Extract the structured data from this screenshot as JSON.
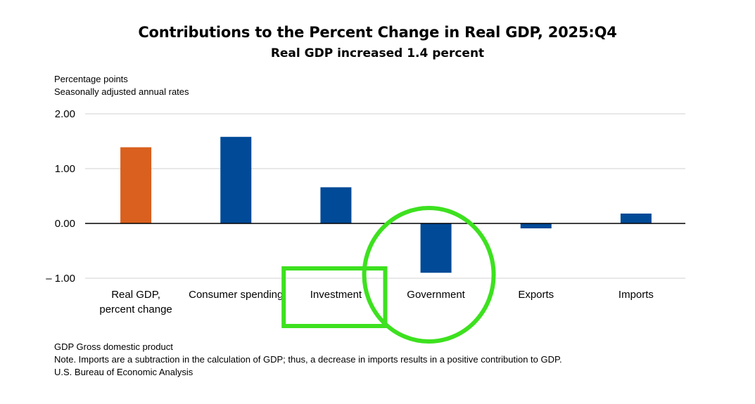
{
  "chart_data": {
    "type": "bar",
    "title": "Contributions to the Percent Change in Real GDP, 2025:Q4",
    "subtitle": "Real GDP increased 1.4 percent",
    "ylabel_lines": [
      "Percentage points",
      "Seasonally adjusted annual rates"
    ],
    "categories": [
      [
        "Real GDP,",
        "percent change"
      ],
      [
        "Consumer spending"
      ],
      [
        "Investment"
      ],
      [
        "Government"
      ],
      [
        "Exports"
      ],
      [
        "Imports"
      ]
    ],
    "values": [
      1.39,
      1.58,
      0.66,
      -0.9,
      -0.09,
      0.18
    ],
    "bar_colors": [
      "#d9601e",
      "#004a97",
      "#004a97",
      "#004a97",
      "#004a97",
      "#004a97"
    ],
    "ylim": [
      -1.0,
      2.0
    ],
    "yticks": [
      2.0,
      1.0,
      0.0,
      -1.0
    ],
    "ytick_labels": [
      "2.00",
      "1.00",
      "0.00",
      "– 1.00"
    ],
    "grid": true,
    "gridline_color": "#d9d9d9",
    "zero_line_color": "#000000",
    "annotations": [
      {
        "shape": "rectangle",
        "target": [
          "Consumer spending",
          "Investment"
        ],
        "color": "#3de11f"
      },
      {
        "shape": "circle",
        "target": "Government",
        "color": "#3de11f"
      }
    ]
  },
  "footnotes": [
    "GDP Gross domestic product",
    "Note. Imports are a subtraction in the calculation of GDP; thus, a decrease in imports results in a positive contribution to GDP.",
    "U.S. Bureau of Economic Analysis"
  ]
}
